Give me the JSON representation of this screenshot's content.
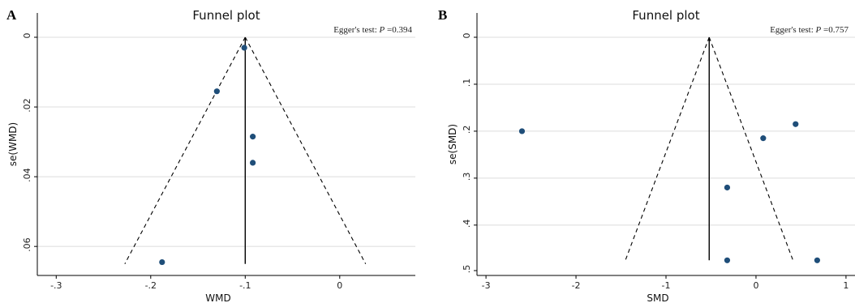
{
  "chart_data": [
    {
      "type": "scatter",
      "panel_label": "A",
      "title": "Funnel plot",
      "annotation": "Egger's test: ",
      "annotation_p": "P",
      "annotation_value": " =0.394",
      "xlabel": "WMD",
      "ylabel": "se(WMD)",
      "xlim": [
        -0.32,
        0.08
      ],
      "ylim": [
        0,
        0.066
      ],
      "y_inverted": true,
      "x_ticks": [
        -0.3,
        -0.2,
        -0.1,
        0
      ],
      "x_tick_labels": [
        "-.3",
        "-.2",
        "-.1",
        "0"
      ],
      "y_ticks": [
        0,
        0.02,
        0.04,
        0.06
      ],
      "y_tick_labels": [
        "0",
        ".02",
        ".04",
        ".06"
      ],
      "pooled_estimate": -0.1,
      "funnel_se_max": 0.065,
      "grid": true,
      "points": [
        {
          "x": -0.101,
          "y": 0.003
        },
        {
          "x": -0.13,
          "y": 0.0155
        },
        {
          "x": -0.092,
          "y": 0.0285
        },
        {
          "x": -0.092,
          "y": 0.036
        },
        {
          "x": -0.188,
          "y": 0.0645
        }
      ],
      "colors": {
        "point": "#1f4e79",
        "line": "#000000",
        "grid": "#dcdcdc"
      }
    },
    {
      "type": "scatter",
      "panel_label": "B",
      "title": "Funnel plot",
      "annotation": "Egger's test: ",
      "annotation_p": "P",
      "annotation_value": " =0.757",
      "xlabel": "SMD",
      "ylabel": "se(SMD)",
      "xlim": [
        -3.1,
        1.1
      ],
      "ylim": [
        0,
        0.49
      ],
      "y_inverted": true,
      "x_ticks": [
        -3,
        -2,
        -1,
        0,
        1
      ],
      "x_tick_labels": [
        "-3",
        "-2",
        "-1",
        "0",
        "1"
      ],
      "y_ticks": [
        0,
        0.1,
        0.2,
        0.3,
        0.4,
        0.5
      ],
      "y_tick_labels": [
        "0",
        ".1",
        ".2",
        ".3",
        ".4",
        ".5"
      ],
      "pooled_estimate": -0.52,
      "funnel_se_max": 0.475,
      "grid": true,
      "points": [
        {
          "x": -2.6,
          "y": 0.2
        },
        {
          "x": 0.08,
          "y": 0.215
        },
        {
          "x": 0.44,
          "y": 0.185
        },
        {
          "x": -0.32,
          "y": 0.32
        },
        {
          "x": -0.32,
          "y": 0.475
        },
        {
          "x": 0.68,
          "y": 0.475
        }
      ],
      "colors": {
        "point": "#1f4e79",
        "line": "#000000",
        "grid": "#dcdcdc"
      }
    }
  ]
}
